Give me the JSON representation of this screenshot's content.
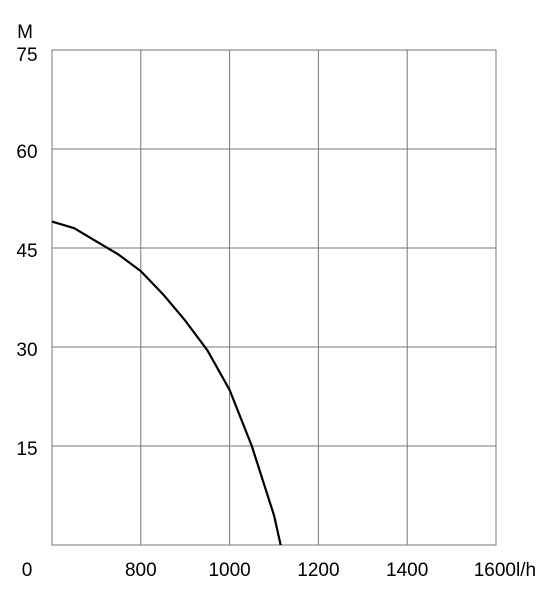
{
  "chart_data": {
    "type": "line",
    "x_label": "l/h",
    "y_label": "M",
    "x": [
      600,
      650,
      700,
      750,
      800,
      850,
      900,
      950,
      1000,
      1050,
      1100,
      1115
    ],
    "series": [
      {
        "name": "curve",
        "color": "#000000",
        "values": [
          49,
          48,
          46,
          44,
          41.5,
          38,
          34,
          29.5,
          23.5,
          15,
          4.5,
          0
        ]
      }
    ],
    "xlim": [
      600,
      1600
    ],
    "xticks": [
      800,
      1000,
      1200,
      1400,
      1600
    ],
    "ylim": [
      0,
      75
    ],
    "yticks": [
      0,
      15,
      30,
      45,
      60,
      75
    ],
    "grid": true
  }
}
